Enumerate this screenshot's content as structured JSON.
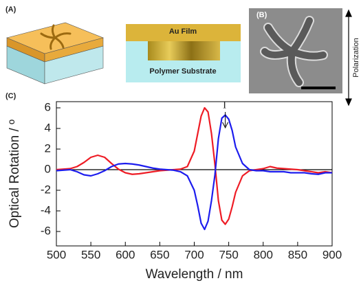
{
  "figure": {
    "panel_a_label": "(A)",
    "au_film": "Au Film",
    "polymer_substrate": "Polymer Substrate",
    "panel_b_label": "(B)",
    "polarization": "Polarization",
    "panel_c_label": "(C)",
    "peak_marker": "I"
  },
  "chart_data": {
    "type": "line",
    "x_label": "Wavelength / nm",
    "y_label": "Optical Rotation / º",
    "x": [
      500,
      510,
      520,
      530,
      540,
      550,
      560,
      570,
      580,
      590,
      600,
      610,
      620,
      630,
      640,
      650,
      660,
      670,
      680,
      690,
      700,
      705,
      710,
      715,
      720,
      725,
      730,
      735,
      740,
      745,
      750,
      755,
      760,
      770,
      780,
      790,
      800,
      810,
      820,
      830,
      840,
      850,
      860,
      870,
      880,
      890,
      900
    ],
    "series": [
      {
        "color": "#ee1c25",
        "values": [
          0,
          0.05,
          0.1,
          0.3,
          0.7,
          1.2,
          1.4,
          1.2,
          0.6,
          0.05,
          -0.3,
          -0.45,
          -0.4,
          -0.3,
          -0.2,
          -0.1,
          -0.05,
          0,
          0.05,
          0.3,
          1.8,
          3.5,
          5.2,
          6.0,
          5.6,
          3.5,
          0.5,
          -3.0,
          -4.9,
          -5.3,
          -4.8,
          -3.6,
          -2.2,
          -0.6,
          -0.1,
          0,
          0.1,
          0.3,
          0.15,
          0.1,
          0.05,
          0,
          -0.1,
          -0.2,
          -0.3,
          -0.2,
          -0.3
        ]
      },
      {
        "color": "#1c1cee",
        "values": [
          -0.1,
          -0.05,
          0,
          -0.2,
          -0.5,
          -0.6,
          -0.4,
          -0.1,
          0.3,
          0.55,
          0.6,
          0.55,
          0.45,
          0.3,
          0.15,
          0.05,
          0,
          -0.05,
          -0.2,
          -0.6,
          -2.0,
          -3.5,
          -5.2,
          -5.8,
          -5.0,
          -3.0,
          -0.5,
          3.0,
          5.0,
          5.3,
          4.9,
          3.8,
          2.2,
          0.6,
          0,
          -0.1,
          -0.1,
          -0.2,
          -0.2,
          -0.2,
          -0.3,
          -0.3,
          -0.3,
          -0.4,
          -0.45,
          -0.3,
          -0.3
        ]
      }
    ],
    "xlim": [
      500,
      900
    ],
    "xticks": [
      500,
      550,
      600,
      650,
      700,
      750,
      800,
      850,
      900
    ],
    "ylim": [
      -7.4,
      6.6
    ],
    "yticks": [
      -6,
      -4,
      -2,
      0,
      2,
      4,
      6
    ],
    "peak_marker_x": 745
  }
}
